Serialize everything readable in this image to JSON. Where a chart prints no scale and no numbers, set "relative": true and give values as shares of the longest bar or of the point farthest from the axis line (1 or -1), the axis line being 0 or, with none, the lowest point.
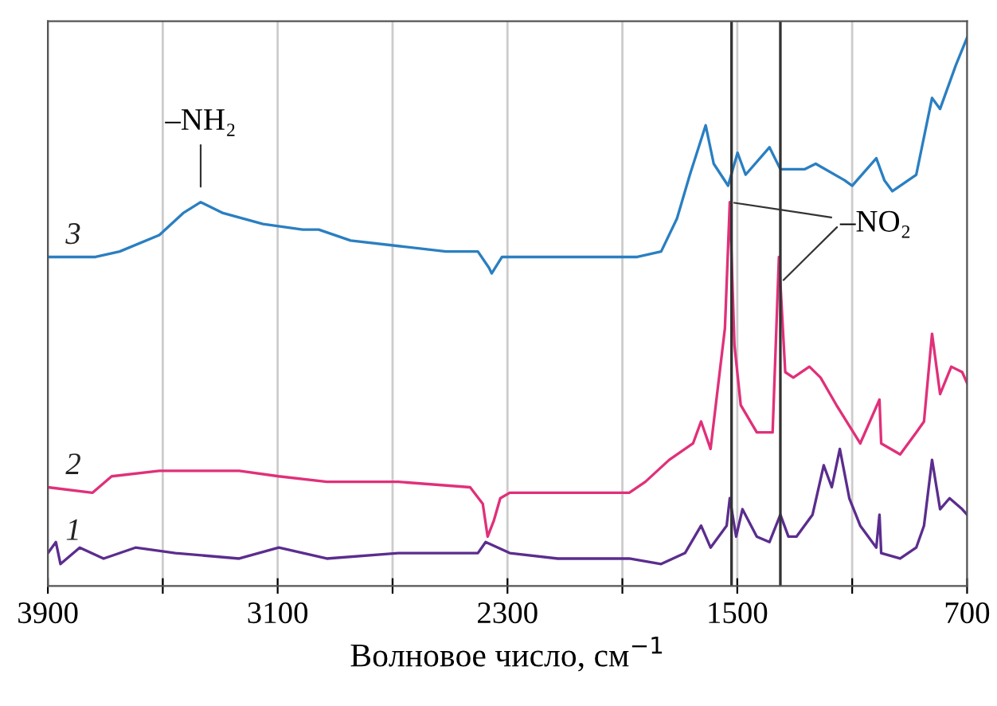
{
  "chart_data": {
    "type": "line",
    "relative": true,
    "xlabel": "Волновое число, см$^{−1}$",
    "xlim": [
      3900,
      700
    ],
    "xticks": [
      3900,
      {
        "value": 3500,
        "label": null
      },
      3100,
      {
        "value": 2700,
        "label": null
      },
      2300,
      {
        "value": 1900,
        "label": null
      },
      1500,
      {
        "value": 1100,
        "label": null
      },
      700
    ],
    "grid": "x",
    "ref_lines": [
      {
        "axis": "x",
        "value": 1520,
        "color": "#333333"
      },
      {
        "axis": "x",
        "value": 1350,
        "color": "#333333"
      }
    ],
    "annotations": [
      {
        "text": "–NH₂",
        "x": 3368,
        "y": 0.7
      },
      {
        "text": "–NO₂",
        "x": 1526,
        "y": 0.7
      }
    ],
    "series": [
      {
        "name": "1",
        "color": "#5b2d8e",
        "x": [
          3900,
          3872,
          3856,
          3789,
          3706,
          3595,
          3456,
          3234,
          3096,
          2929,
          2680,
          2403,
          2376,
          2292,
          2125,
          1876,
          1765,
          1682,
          1626,
          1593,
          1537,
          1526,
          1504,
          1482,
          1432,
          1388,
          1350,
          1322,
          1294,
          1238,
          1199,
          1171,
          1143,
          1110,
          1072,
          1016,
          1005,
          999,
          933,
          877,
          850,
          822,
          794,
          761,
          717,
          700
        ],
        "values": [
          0.06,
          0.08,
          0.04,
          0.07,
          0.05,
          0.07,
          0.06,
          0.05,
          0.07,
          0.05,
          0.06,
          0.06,
          0.08,
          0.06,
          0.05,
          0.05,
          0.04,
          0.06,
          0.11,
          0.07,
          0.11,
          0.16,
          0.09,
          0.14,
          0.09,
          0.08,
          0.13,
          0.09,
          0.09,
          0.13,
          0.22,
          0.18,
          0.25,
          0.16,
          0.11,
          0.07,
          0.13,
          0.06,
          0.05,
          0.07,
          0.11,
          0.23,
          0.14,
          0.16,
          0.14,
          0.13
        ]
      },
      {
        "name": "2",
        "color": "#e0307a",
        "x": [
          3900,
          3745,
          3678,
          3512,
          3373,
          3234,
          3096,
          2929,
          2680,
          2430,
          2386,
          2369,
          2347,
          2325,
          2292,
          2125,
          1876,
          1820,
          1737,
          1654,
          1626,
          1593,
          1543,
          1526,
          1510,
          1488,
          1432,
          1377,
          1355,
          1333,
          1305,
          1249,
          1210,
          1155,
          1072,
          1005,
          999,
          933,
          877,
          850,
          822,
          794,
          755,
          717,
          700
        ],
        "values": [
          0.18,
          0.17,
          0.2,
          0.21,
          0.21,
          0.21,
          0.2,
          0.19,
          0.19,
          0.18,
          0.15,
          0.09,
          0.12,
          0.16,
          0.17,
          0.17,
          0.17,
          0.19,
          0.23,
          0.26,
          0.3,
          0.25,
          0.47,
          0.7,
          0.44,
          0.33,
          0.28,
          0.28,
          0.6,
          0.39,
          0.38,
          0.4,
          0.38,
          0.33,
          0.26,
          0.34,
          0.26,
          0.24,
          0.28,
          0.3,
          0.46,
          0.35,
          0.4,
          0.39,
          0.37
        ]
      },
      {
        "name": "3",
        "color": "#2a7fc1",
        "x": [
          3900,
          3734,
          3650,
          3512,
          3429,
          3368,
          3290,
          3151,
          3013,
          2957,
          2846,
          2680,
          2514,
          2403,
          2364,
          2355,
          2319,
          2236,
          2070,
          1848,
          1765,
          1710,
          1665,
          1610,
          1582,
          1532,
          1499,
          1471,
          1388,
          1350,
          1266,
          1227,
          1127,
          1100,
          1016,
          988,
          960,
          877,
          822,
          794,
          739,
          700
        ],
        "values": [
          0.6,
          0.6,
          0.61,
          0.64,
          0.68,
          0.7,
          0.68,
          0.66,
          0.65,
          0.65,
          0.63,
          0.62,
          0.61,
          0.61,
          0.58,
          0.57,
          0.6,
          0.6,
          0.6,
          0.6,
          0.61,
          0.67,
          0.75,
          0.84,
          0.77,
          0.73,
          0.79,
          0.75,
          0.8,
          0.76,
          0.76,
          0.77,
          0.74,
          0.73,
          0.78,
          0.74,
          0.72,
          0.75,
          0.89,
          0.87,
          0.95,
          1.0
        ]
      }
    ]
  }
}
